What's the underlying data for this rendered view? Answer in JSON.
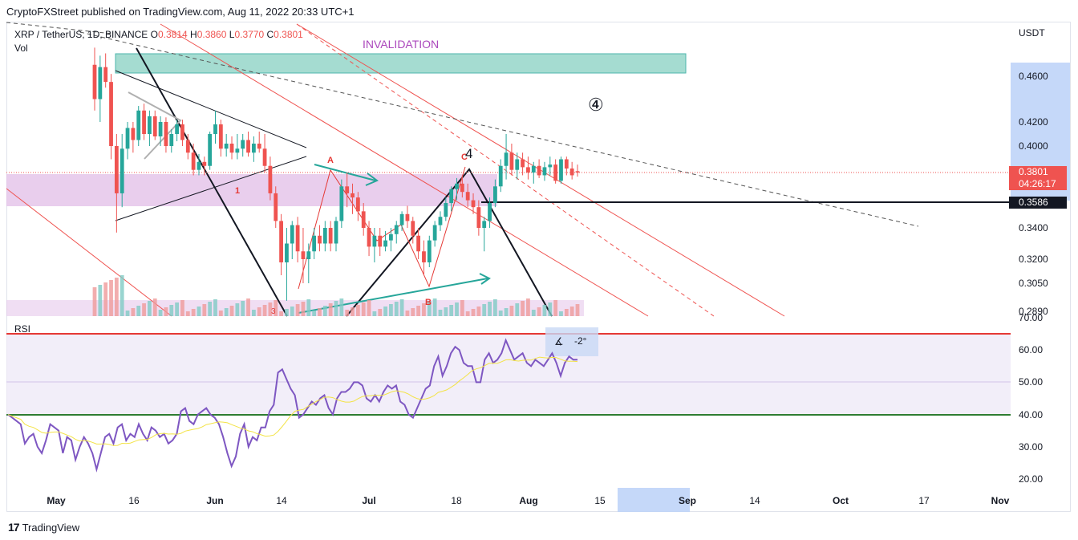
{
  "header": {
    "publisher": "CryptoFXStreet published on TradingView.com, Aug 11, 2022 20:33 UTC+1"
  },
  "legend": {
    "symbol": "XRP / TetherUS, 1D, BINANCE",
    "o_label": "O",
    "o": "0.3814",
    "h_label": "H",
    "h": "0.3860",
    "l_label": "L",
    "l": "0.3770",
    "c_label": "C",
    "c": "0.3801",
    "vol_label": "Vol"
  },
  "currency": "USDT",
  "price_ticks": [
    "0.4600",
    "0.4200",
    "0.4000",
    "0.3400",
    "0.3200",
    "0.3050",
    "0.2890"
  ],
  "current_price": {
    "value": "0.3801",
    "countdown": "04:26:17"
  },
  "level_tag": "0.3586",
  "rsi": {
    "label": "RSI",
    "ticks": [
      "70.00",
      "60.00",
      "50.00",
      "40.00",
      "30.00",
      "20.00"
    ],
    "tool_label": "-2°"
  },
  "x_ticks": [
    "May",
    "16",
    "Jun",
    "14",
    "Jul",
    "18",
    "Aug",
    "15",
    "Sep",
    "14",
    "Oct",
    "17",
    "Nov"
  ],
  "annotations": {
    "invalidation": "INVALIDATION",
    "circled_four": "④",
    "wave_1": "1",
    "wave_A": "A",
    "wave_B": "B",
    "wave_C": "C",
    "wave_3": "3",
    "wave_4": "4"
  },
  "colors": {
    "up": "#26a69a",
    "down": "#ef5350",
    "rsi_line": "#7e57c2",
    "rsi_ma": "#f3e346",
    "zone_teal": "#a5dcd1",
    "zone_pink": "#e1bee7",
    "invalid_text": "#ab47bc"
  },
  "footer": {
    "brand": "TradingView"
  },
  "chart_data": {
    "type": "candlestick",
    "price_series": [
      {
        "o": 0.47,
        "h": 0.485,
        "l": 0.43,
        "c": 0.44
      },
      {
        "o": 0.44,
        "h": 0.478,
        "l": 0.42,
        "c": 0.468
      },
      {
        "o": 0.468,
        "h": 0.48,
        "l": 0.45,
        "c": 0.455
      },
      {
        "o": 0.455,
        "h": 0.462,
        "l": 0.39,
        "c": 0.4
      },
      {
        "o": 0.4,
        "h": 0.41,
        "l": 0.337,
        "c": 0.365
      },
      {
        "o": 0.365,
        "h": 0.41,
        "l": 0.355,
        "c": 0.398
      },
      {
        "o": 0.398,
        "h": 0.42,
        "l": 0.39,
        "c": 0.415
      },
      {
        "o": 0.415,
        "h": 0.42,
        "l": 0.395,
        "c": 0.405
      },
      {
        "o": 0.405,
        "h": 0.434,
        "l": 0.4,
        "c": 0.43
      },
      {
        "o": 0.43,
        "h": 0.436,
        "l": 0.405,
        "c": 0.41
      },
      {
        "o": 0.41,
        "h": 0.43,
        "l": 0.4,
        "c": 0.425
      },
      {
        "o": 0.425,
        "h": 0.43,
        "l": 0.405,
        "c": 0.408
      },
      {
        "o": 0.408,
        "h": 0.425,
        "l": 0.4,
        "c": 0.42
      },
      {
        "o": 0.42,
        "h": 0.424,
        "l": 0.395,
        "c": 0.4
      },
      {
        "o": 0.4,
        "h": 0.414,
        "l": 0.395,
        "c": 0.41
      },
      {
        "o": 0.41,
        "h": 0.422,
        "l": 0.404,
        "c": 0.418
      },
      {
        "o": 0.418,
        "h": 0.422,
        "l": 0.4,
        "c": 0.405
      },
      {
        "o": 0.405,
        "h": 0.41,
        "l": 0.39,
        "c": 0.395
      },
      {
        "o": 0.395,
        "h": 0.402,
        "l": 0.378,
        "c": 0.382
      },
      {
        "o": 0.382,
        "h": 0.394,
        "l": 0.378,
        "c": 0.388
      },
      {
        "o": 0.388,
        "h": 0.392,
        "l": 0.378,
        "c": 0.385
      },
      {
        "o": 0.385,
        "h": 0.412,
        "l": 0.382,
        "c": 0.41
      },
      {
        "o": 0.41,
        "h": 0.43,
        "l": 0.402,
        "c": 0.418
      },
      {
        "o": 0.418,
        "h": 0.422,
        "l": 0.392,
        "c": 0.398
      },
      {
        "o": 0.398,
        "h": 0.41,
        "l": 0.392,
        "c": 0.402
      },
      {
        "o": 0.402,
        "h": 0.408,
        "l": 0.39,
        "c": 0.395
      },
      {
        "o": 0.395,
        "h": 0.41,
        "l": 0.39,
        "c": 0.398
      },
      {
        "o": 0.398,
        "h": 0.41,
        "l": 0.392,
        "c": 0.405
      },
      {
        "o": 0.405,
        "h": 0.412,
        "l": 0.392,
        "c": 0.395
      },
      {
        "o": 0.395,
        "h": 0.408,
        "l": 0.388,
        "c": 0.402
      },
      {
        "o": 0.402,
        "h": 0.412,
        "l": 0.395,
        "c": 0.398
      },
      {
        "o": 0.398,
        "h": 0.41,
        "l": 0.38,
        "c": 0.385
      },
      {
        "o": 0.385,
        "h": 0.392,
        "l": 0.36,
        "c": 0.365
      },
      {
        "o": 0.365,
        "h": 0.37,
        "l": 0.34,
        "c": 0.345
      },
      {
        "o": 0.345,
        "h": 0.35,
        "l": 0.31,
        "c": 0.318
      },
      {
        "o": 0.318,
        "h": 0.34,
        "l": 0.295,
        "c": 0.33
      },
      {
        "o": 0.33,
        "h": 0.345,
        "l": 0.32,
        "c": 0.342
      },
      {
        "o": 0.342,
        "h": 0.348,
        "l": 0.318,
        "c": 0.325
      },
      {
        "o": 0.325,
        "h": 0.34,
        "l": 0.305,
        "c": 0.32
      },
      {
        "o": 0.32,
        "h": 0.33,
        "l": 0.305,
        "c": 0.325
      },
      {
        "o": 0.325,
        "h": 0.34,
        "l": 0.32,
        "c": 0.335
      },
      {
        "o": 0.335,
        "h": 0.342,
        "l": 0.325,
        "c": 0.33
      },
      {
        "o": 0.33,
        "h": 0.345,
        "l": 0.325,
        "c": 0.34
      },
      {
        "o": 0.34,
        "h": 0.345,
        "l": 0.325,
        "c": 0.33
      },
      {
        "o": 0.33,
        "h": 0.348,
        "l": 0.325,
        "c": 0.345
      },
      {
        "o": 0.345,
        "h": 0.375,
        "l": 0.34,
        "c": 0.37
      },
      {
        "o": 0.37,
        "h": 0.38,
        "l": 0.355,
        "c": 0.365
      },
      {
        "o": 0.365,
        "h": 0.372,
        "l": 0.35,
        "c": 0.362
      },
      {
        "o": 0.362,
        "h": 0.366,
        "l": 0.345,
        "c": 0.352
      },
      {
        "o": 0.352,
        "h": 0.358,
        "l": 0.335,
        "c": 0.34
      },
      {
        "o": 0.34,
        "h": 0.345,
        "l": 0.322,
        "c": 0.328
      },
      {
        "o": 0.328,
        "h": 0.34,
        "l": 0.318,
        "c": 0.335
      },
      {
        "o": 0.335,
        "h": 0.34,
        "l": 0.322,
        "c": 0.328
      },
      {
        "o": 0.328,
        "h": 0.338,
        "l": 0.325,
        "c": 0.332
      },
      {
        "o": 0.332,
        "h": 0.34,
        "l": 0.325,
        "c": 0.336
      },
      {
        "o": 0.336,
        "h": 0.345,
        "l": 0.33,
        "c": 0.342
      },
      {
        "o": 0.342,
        "h": 0.352,
        "l": 0.338,
        "c": 0.35
      },
      {
        "o": 0.35,
        "h": 0.356,
        "l": 0.34,
        "c": 0.345
      },
      {
        "o": 0.345,
        "h": 0.348,
        "l": 0.33,
        "c": 0.335
      },
      {
        "o": 0.335,
        "h": 0.34,
        "l": 0.32,
        "c": 0.325
      },
      {
        "o": 0.325,
        "h": 0.332,
        "l": 0.31,
        "c": 0.318
      },
      {
        "o": 0.318,
        "h": 0.335,
        "l": 0.315,
        "c": 0.332
      },
      {
        "o": 0.332,
        "h": 0.345,
        "l": 0.328,
        "c": 0.342
      },
      {
        "o": 0.342,
        "h": 0.352,
        "l": 0.338,
        "c": 0.348
      },
      {
        "o": 0.348,
        "h": 0.362,
        "l": 0.345,
        "c": 0.358
      },
      {
        "o": 0.358,
        "h": 0.37,
        "l": 0.352,
        "c": 0.368
      },
      {
        "o": 0.368,
        "h": 0.376,
        "l": 0.36,
        "c": 0.372
      },
      {
        "o": 0.372,
        "h": 0.378,
        "l": 0.362,
        "c": 0.366
      },
      {
        "o": 0.366,
        "h": 0.372,
        "l": 0.355,
        "c": 0.36
      },
      {
        "o": 0.36,
        "h": 0.365,
        "l": 0.35,
        "c": 0.355
      },
      {
        "o": 0.355,
        "h": 0.36,
        "l": 0.335,
        "c": 0.34
      },
      {
        "o": 0.34,
        "h": 0.348,
        "l": 0.325,
        "c": 0.345
      },
      {
        "o": 0.345,
        "h": 0.362,
        "l": 0.34,
        "c": 0.358
      },
      {
        "o": 0.358,
        "h": 0.375,
        "l": 0.355,
        "c": 0.37
      },
      {
        "o": 0.37,
        "h": 0.39,
        "l": 0.366,
        "c": 0.385
      },
      {
        "o": 0.385,
        "h": 0.41,
        "l": 0.375,
        "c": 0.395
      },
      {
        "o": 0.395,
        "h": 0.402,
        "l": 0.378,
        "c": 0.382
      },
      {
        "o": 0.382,
        "h": 0.395,
        "l": 0.375,
        "c": 0.39
      },
      {
        "o": 0.39,
        "h": 0.395,
        "l": 0.378,
        "c": 0.384
      },
      {
        "o": 0.384,
        "h": 0.392,
        "l": 0.375,
        "c": 0.38
      },
      {
        "o": 0.38,
        "h": 0.388,
        "l": 0.372,
        "c": 0.385
      },
      {
        "o": 0.385,
        "h": 0.39,
        "l": 0.376,
        "c": 0.378
      },
      {
        "o": 0.378,
        "h": 0.388,
        "l": 0.374,
        "c": 0.384
      },
      {
        "o": 0.384,
        "h": 0.392,
        "l": 0.378,
        "c": 0.386
      },
      {
        "o": 0.386,
        "h": 0.39,
        "l": 0.372,
        "c": 0.374
      },
      {
        "o": 0.374,
        "h": 0.392,
        "l": 0.372,
        "c": 0.39
      },
      {
        "o": 0.39,
        "h": 0.392,
        "l": 0.378,
        "c": 0.383
      },
      {
        "o": 0.383,
        "h": 0.388,
        "l": 0.375,
        "c": 0.378
      },
      {
        "o": 0.381,
        "h": 0.386,
        "l": 0.377,
        "c": 0.38
      }
    ],
    "rsi_values": [
      40,
      39,
      38,
      37,
      31,
      33,
      34,
      30,
      28,
      32,
      37,
      36,
      35,
      28,
      33,
      32,
      26,
      30,
      33,
      31,
      28,
      23,
      28,
      33,
      34,
      31,
      36,
      37,
      32,
      34,
      33,
      37,
      34,
      32,
      36,
      35,
      33,
      34,
      31,
      32,
      34,
      41,
      42,
      38,
      37,
      40,
      41,
      42,
      40,
      39,
      37,
      33,
      28,
      24,
      27,
      34,
      37,
      30,
      33,
      32,
      36,
      36,
      41,
      43,
      53,
      54,
      51,
      48,
      46,
      39,
      40,
      42,
      44,
      43,
      45,
      46,
      42,
      40,
      45,
      47,
      47,
      48,
      50,
      50,
      49,
      45,
      44,
      46,
      44,
      47,
      49,
      48,
      49,
      44,
      43,
      40,
      39,
      42,
      45,
      48,
      49,
      55,
      58,
      52,
      55,
      59,
      61,
      60,
      56,
      55,
      55,
      50,
      50,
      57,
      59,
      56,
      57,
      59,
      63,
      60,
      57,
      58,
      59,
      56,
      55,
      57,
      56,
      55,
      57,
      59,
      56,
      52,
      56,
      58,
      57,
      57
    ],
    "rsi_axis": [
      20,
      70
    ],
    "price_axis_ticks": [
      0.46,
      0.42,
      0.4,
      0.38,
      0.3586,
      0.34,
      0.32,
      0.305,
      0.289
    ]
  }
}
